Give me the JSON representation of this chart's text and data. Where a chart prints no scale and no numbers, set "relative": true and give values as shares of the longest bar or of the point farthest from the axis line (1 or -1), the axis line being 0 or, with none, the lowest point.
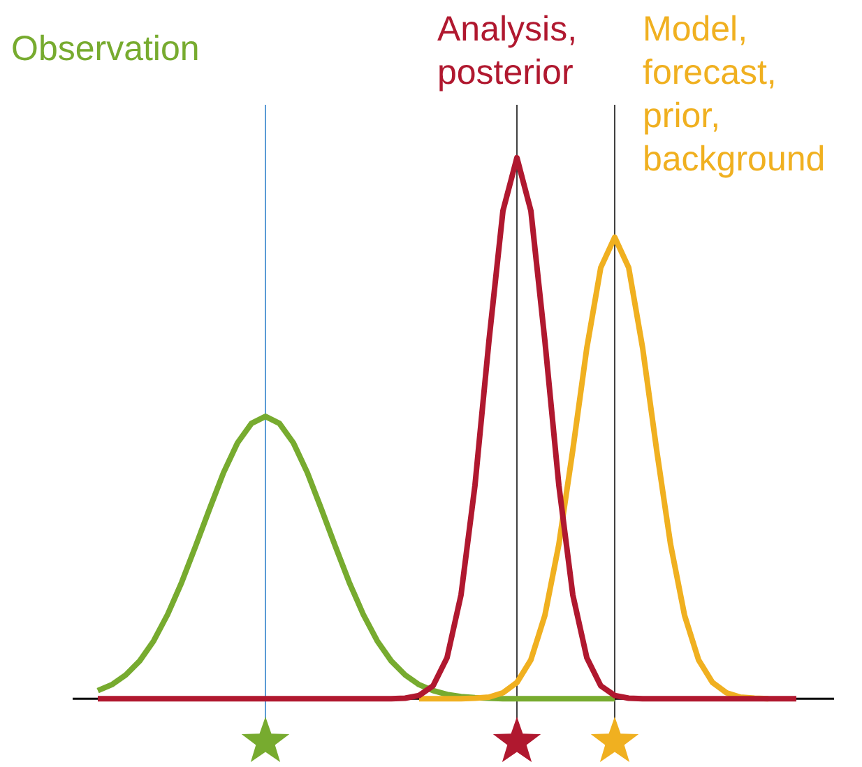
{
  "chart_data": {
    "type": "line",
    "relative": true,
    "grid": false,
    "tick_labels": false,
    "categories": [
      null,
      null,
      null,
      null,
      null,
      null,
      null,
      null,
      null,
      null,
      null,
      null,
      null,
      null,
      null,
      null,
      null,
      null,
      null,
      null,
      null,
      null,
      null,
      null,
      null,
      null,
      null,
      null,
      null,
      null,
      null,
      null,
      null,
      null,
      null,
      null,
      null,
      null,
      null,
      null,
      null,
      null,
      null,
      null,
      null,
      null,
      null,
      null,
      null,
      null,
      null
    ],
    "series": [
      {
        "name": "Observation",
        "color": "#77ab2f",
        "marker": "none",
        "values": [
          0.015,
          0.026,
          0.044,
          0.07,
          0.107,
          0.156,
          0.215,
          0.282,
          0.351,
          0.418,
          0.473,
          0.509,
          0.522,
          0.509,
          0.473,
          0.418,
          0.351,
          0.282,
          0.215,
          0.156,
          0.107,
          0.07,
          0.044,
          0.026,
          0.015,
          0.008,
          0.004,
          0.002,
          0.001,
          0,
          0,
          0,
          0,
          0,
          0,
          0,
          0,
          0,
          null,
          null,
          null,
          null,
          null,
          null,
          null,
          null,
          null,
          null,
          null,
          null,
          null
        ]
      },
      {
        "name": "Model, forecast, prior, background",
        "color": "#f0b020",
        "marker": "none",
        "values": [
          null,
          null,
          null,
          null,
          null,
          null,
          null,
          null,
          null,
          null,
          null,
          null,
          null,
          null,
          null,
          null,
          null,
          null,
          null,
          null,
          null,
          null,
          null,
          0,
          0,
          0,
          0,
          0.001,
          0.003,
          0.011,
          0.03,
          0.072,
          0.154,
          0.285,
          0.46,
          0.648,
          0.797,
          0.853,
          0.797,
          0.648,
          0.46,
          0.285,
          0.154,
          0.072,
          0.03,
          0.011,
          0.003,
          0.001,
          0,
          null,
          null
        ]
      },
      {
        "name": "Analysis, posterior",
        "color": "#b0182f",
        "marker": "none",
        "values": [
          0,
          0,
          0,
          0,
          0,
          0,
          0,
          0,
          0,
          0,
          0,
          0,
          0,
          0,
          0,
          0,
          0,
          0,
          0,
          0,
          0,
          0,
          0.001,
          0.006,
          0.024,
          0.076,
          0.192,
          0.395,
          0.662,
          0.902,
          1,
          0.902,
          0.662,
          0.395,
          0.192,
          0.076,
          0.024,
          0.006,
          0.001,
          0,
          0,
          0,
          0,
          0,
          0,
          0,
          0,
          0,
          0,
          0,
          0
        ]
      }
    ]
  }
}
